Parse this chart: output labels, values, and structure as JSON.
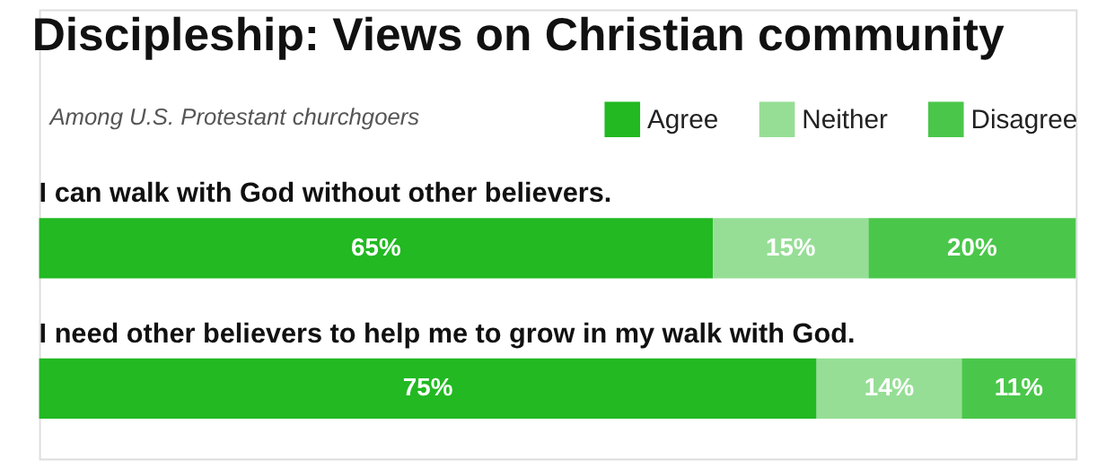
{
  "chart_data": {
    "type": "bar",
    "orientation": "horizontal",
    "stacked": true,
    "title": "Discipleship: Views on Christian community",
    "subtitle": "Among U.S. Protestant churchgoers",
    "categories": [
      "I can walk with God without other believers.",
      "I need other believers to help me to grow in my walk with God."
    ],
    "series": [
      {
        "name": "Agree",
        "color": "#22b922",
        "values": [
          65,
          75
        ],
        "value_labels": [
          "65%",
          "75%"
        ]
      },
      {
        "name": "Neither",
        "color": "#96de96",
        "values": [
          15,
          14
        ],
        "value_labels": [
          "15%",
          "14%"
        ]
      },
      {
        "name": "Disagree",
        "color": "#4ac74a",
        "values": [
          20,
          11
        ],
        "value_labels": [
          "20%",
          "11%"
        ]
      }
    ],
    "legend": "top right"
  }
}
